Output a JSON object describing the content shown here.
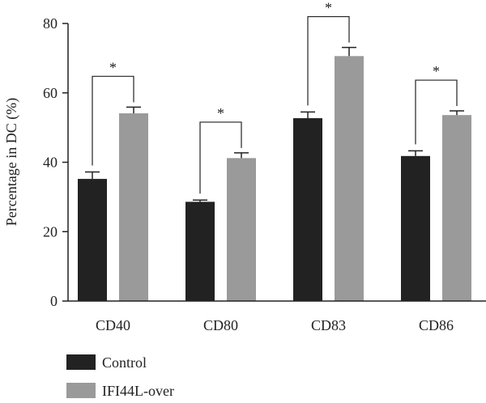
{
  "chart_data": {
    "type": "bar",
    "title": "",
    "xlabel": "",
    "ylabel": "Percentage in DC (%)",
    "ylim": [
      0,
      80
    ],
    "yticks": [
      0,
      20,
      40,
      60,
      80
    ],
    "categories": [
      "CD40",
      "CD80",
      "CD83",
      "CD86"
    ],
    "series": [
      {
        "name": "Control",
        "color": "#222222",
        "values": [
          35.2,
          28.6,
          52.7,
          41.8
        ],
        "errors": [
          2.0,
          0.5,
          1.8,
          1.5
        ]
      },
      {
        "name": "IFI44L-over",
        "color": "#9a9a9a",
        "values": [
          54.1,
          41.2,
          70.6,
          53.6
        ],
        "errors": [
          1.8,
          1.5,
          2.5,
          1.2
        ]
      }
    ],
    "significance": [
      {
        "category": "CD40",
        "label": "*"
      },
      {
        "category": "CD80",
        "label": "*"
      },
      {
        "category": "CD83",
        "label": "*"
      },
      {
        "category": "CD86",
        "label": "*"
      }
    ],
    "grid": false,
    "legend_position": "bottom-left"
  }
}
